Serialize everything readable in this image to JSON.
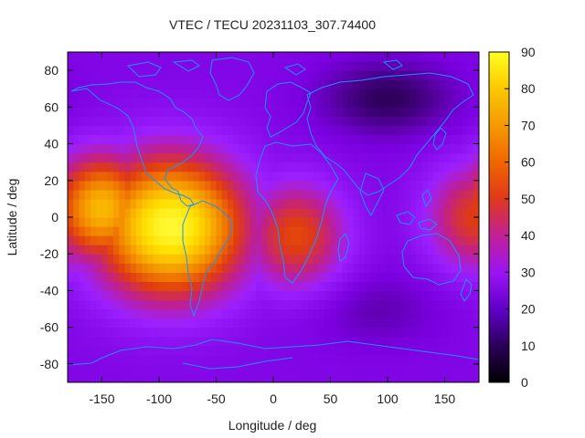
{
  "chart_data": {
    "type": "heatmap",
    "title": "VTEC / TECU 20231103_307.74400",
    "xlabel": "Longitude / deg",
    "ylabel": "Latitude / deg",
    "xlim": [
      -180,
      180
    ],
    "ylim": [
      -90,
      90
    ],
    "xticks": [
      -150,
      -100,
      -50,
      0,
      50,
      100,
      150
    ],
    "yticks": [
      -80,
      -60,
      -40,
      -20,
      0,
      20,
      40,
      60,
      80
    ],
    "colorbar": {
      "range": [
        0,
        90
      ],
      "ticks": [
        0,
        10,
        20,
        30,
        40,
        50,
        60,
        70,
        80,
        90
      ],
      "colormap": [
        "#000000",
        "#3a0070",
        "#7b00e0",
        "#9c20ff",
        "#c0208a",
        "#e03c10",
        "#f07a00",
        "#f8b000",
        "#ffe000",
        "#ffff40"
      ]
    },
    "grid": false,
    "overlay": "coastlines",
    "field_features": [
      {
        "region": "equatorial Pacific / South America",
        "lon": -90,
        "lat": -5,
        "peak_tecu": 88
      },
      {
        "region": "eastern Pacific",
        "lon": -150,
        "lat": 5,
        "peak_tecu": 72
      },
      {
        "region": "South Atlantic tongue",
        "lon": 20,
        "lat": -10,
        "peak_tecu": 52
      },
      {
        "region": "western Pacific edge",
        "lon": 178,
        "lat": 0,
        "peak_tecu": 50
      },
      {
        "region": "Siberia / northern Asia",
        "lon": 100,
        "lat": 65,
        "min_tecu": 8
      },
      {
        "region": "southern Indian Ocean",
        "lon": 90,
        "lat": -50,
        "min_tecu": 16
      },
      {
        "region": "background",
        "typical_tecu": 22
      }
    ]
  }
}
